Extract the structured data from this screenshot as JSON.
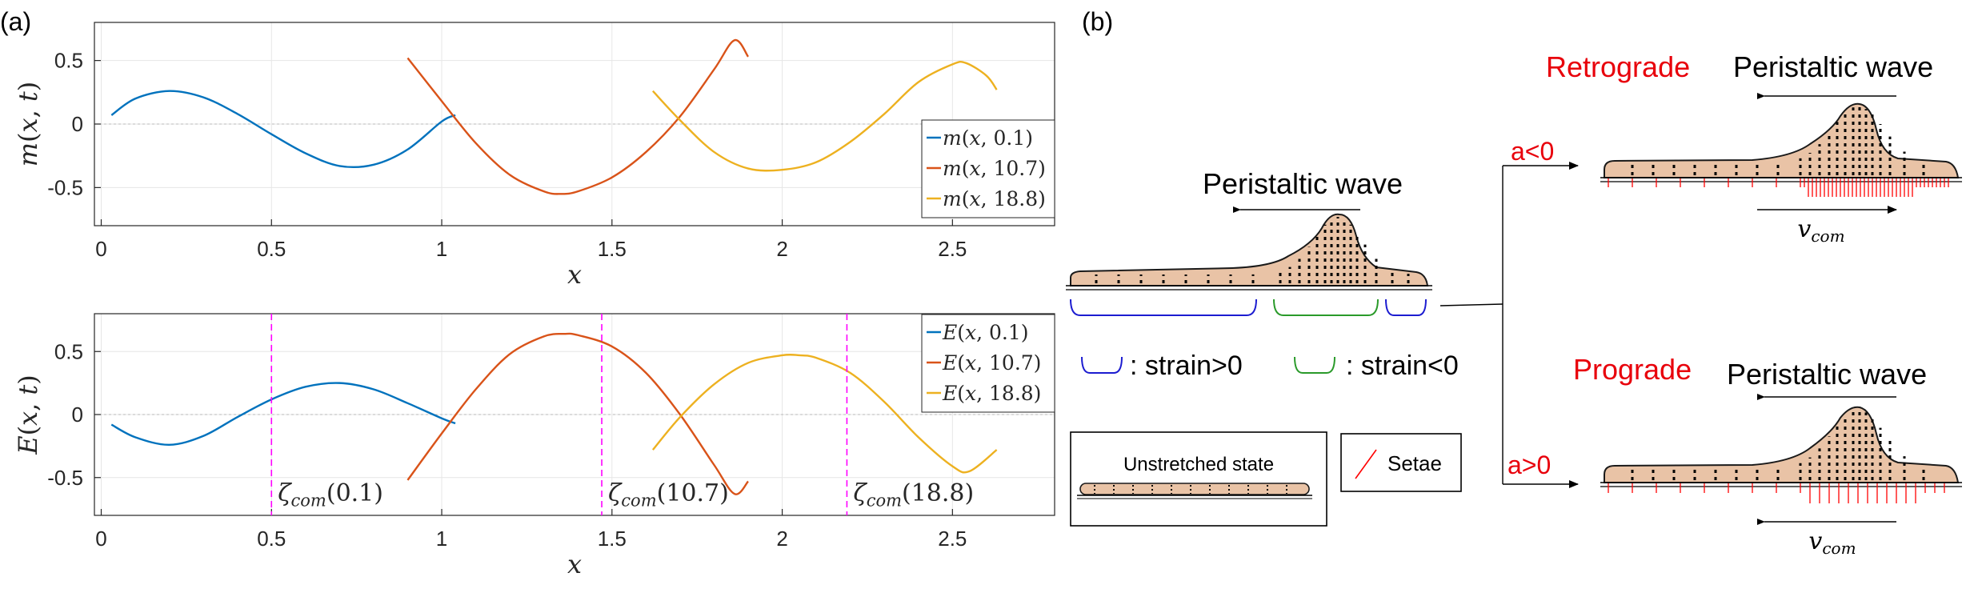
{
  "panel_a_label": "(a)",
  "panel_b_label": "(b)",
  "chart_data": [
    {
      "type": "line",
      "xlabel": "x",
      "ylabel": "m(x, t)",
      "xlim": [
        -0.02,
        2.8
      ],
      "ylim": [
        -0.8,
        0.8
      ],
      "xticks": [
        "0",
        "0.5",
        "1",
        "1.5",
        "2",
        "2.5"
      ],
      "yticks": [
        "0.5",
        "0",
        "-0.5"
      ],
      "xtick_values": [
        0,
        0.5,
        1,
        1.5,
        2,
        2.5
      ],
      "ytick_values": [
        0.5,
        0,
        -0.5
      ],
      "grid": true,
      "legend_position": "right",
      "series": [
        {
          "name": "m(x, 0.1)",
          "color": "#0072BD",
          "x": [
            0.03,
            0.1,
            0.2,
            0.3,
            0.4,
            0.5,
            0.6,
            0.7,
            0.8,
            0.9,
            1.0,
            1.04
          ],
          "y": [
            0.07,
            0.2,
            0.26,
            0.21,
            0.08,
            -0.08,
            -0.23,
            -0.33,
            -0.32,
            -0.2,
            0.02,
            0.07
          ]
        },
        {
          "name": "m(x, 10.7)",
          "color": "#D95319",
          "x": [
            0.9,
            1.0,
            1.1,
            1.2,
            1.3,
            1.35,
            1.4,
            1.5,
            1.6,
            1.7,
            1.8,
            1.86,
            1.9
          ],
          "y": [
            0.52,
            0.18,
            -0.15,
            -0.4,
            -0.53,
            -0.55,
            -0.53,
            -0.42,
            -0.22,
            0.06,
            0.43,
            0.66,
            0.53
          ]
        },
        {
          "name": "m(x, 18.8)",
          "color": "#EDB120",
          "x": [
            1.62,
            1.7,
            1.8,
            1.9,
            2.0,
            2.1,
            2.2,
            2.3,
            2.4,
            2.5,
            2.54,
            2.6,
            2.63
          ],
          "y": [
            0.26,
            0.03,
            -0.22,
            -0.35,
            -0.36,
            -0.3,
            -0.14,
            0.08,
            0.33,
            0.47,
            0.48,
            0.38,
            0.27
          ]
        }
      ]
    },
    {
      "type": "line",
      "xlabel": "x",
      "ylabel": "E(x, t)",
      "xlim": [
        -0.02,
        2.8
      ],
      "ylim": [
        -0.8,
        0.8
      ],
      "xticks": [
        "0",
        "0.5",
        "1",
        "1.5",
        "2",
        "2.5"
      ],
      "yticks": [
        "0.5",
        "0",
        "-0.5"
      ],
      "xtick_values": [
        0,
        0.5,
        1,
        1.5,
        2,
        2.5
      ],
      "ytick_values": [
        0.5,
        0,
        -0.5
      ],
      "grid": true,
      "legend_position": "top-right",
      "series": [
        {
          "name": "E(x, 0.1)",
          "color": "#0072BD",
          "x": [
            0.03,
            0.1,
            0.2,
            0.3,
            0.4,
            0.5,
            0.6,
            0.7,
            0.8,
            0.9,
            1.0,
            1.04
          ],
          "y": [
            -0.08,
            -0.18,
            -0.24,
            -0.17,
            -0.02,
            0.12,
            0.22,
            0.25,
            0.2,
            0.09,
            -0.03,
            -0.07
          ]
        },
        {
          "name": "E(x, 10.7)",
          "color": "#D95319",
          "x": [
            0.9,
            1.0,
            1.1,
            1.2,
            1.3,
            1.36,
            1.4,
            1.5,
            1.6,
            1.7,
            1.8,
            1.86,
            1.9
          ],
          "y": [
            -0.52,
            -0.15,
            0.2,
            0.48,
            0.62,
            0.64,
            0.63,
            0.54,
            0.33,
            0.0,
            -0.4,
            -0.63,
            -0.53
          ]
        },
        {
          "name": "E(x, 18.8)",
          "color": "#EDB120",
          "x": [
            1.62,
            1.7,
            1.8,
            1.9,
            2.0,
            2.05,
            2.1,
            2.2,
            2.3,
            2.4,
            2.5,
            2.55,
            2.63
          ],
          "y": [
            -0.28,
            -0.02,
            0.24,
            0.41,
            0.47,
            0.47,
            0.45,
            0.33,
            0.1,
            -0.18,
            -0.41,
            -0.45,
            -0.28
          ]
        }
      ],
      "annotations": [
        {
          "x": 0.5,
          "label": "ζcom(0.1)",
          "color": "#FF00FF"
        },
        {
          "x": 1.47,
          "label": "ζcom(10.7)",
          "color": "#FF00FF"
        },
        {
          "x": 2.19,
          "label": "ζcom(18.8)",
          "color": "#FF00FF"
        }
      ]
    }
  ],
  "diagram": {
    "center_wave_label": "Peristaltic wave",
    "strain_pos_label": ": strain>0",
    "strain_neg_label": ": strain<0",
    "unstretched_label": "Unstretched state",
    "setae_label": "Setae",
    "branch_top_label": "a<0",
    "branch_bottom_label": "a>0",
    "retro_title": "Retrograde",
    "retro_wave_label": "Peristaltic wave",
    "pro_title": "Prograde",
    "pro_wave_label": "Peristaltic wave",
    "vcom_label": "v",
    "vcom_sub": "com",
    "colors": {
      "body_fill": "#E9C3A6",
      "setae": "#FF0000",
      "accent_red": "#E8000B",
      "strain_pos": "#0000CC",
      "strain_neg": "#008800"
    }
  }
}
